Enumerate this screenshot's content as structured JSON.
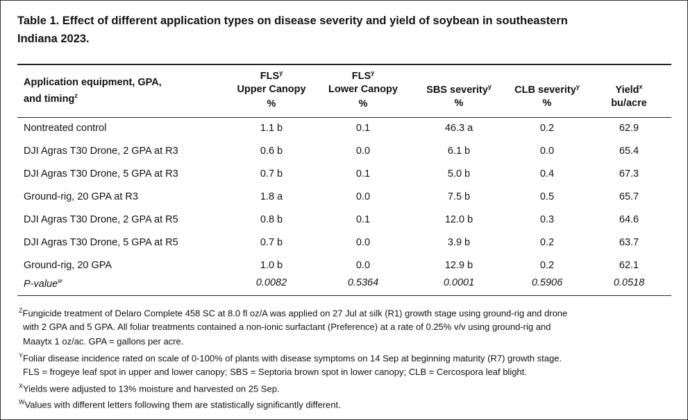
{
  "title": {
    "lines": [
      "Table 1. Effect of different application types on disease severity and yield of soybean in southeastern",
      "Indiana 2023."
    ]
  },
  "table": {
    "header": [
      [
        {
          "text": "Application equipment, GPA,"
        },
        {
          "text": "and timing",
          "sup": "z"
        }
      ],
      [
        {
          "text": "FLS",
          "sup": "y"
        },
        {
          "text": "Upper Canopy"
        },
        {
          "text": "%"
        }
      ],
      [
        {
          "text": "FLS",
          "sup": "y"
        },
        {
          "text": "Lower Canopy"
        },
        {
          "text": "%"
        }
      ],
      [
        {
          "text": "SBS severity",
          "sup": "y"
        },
        {
          "text": "%"
        }
      ],
      [
        {
          "text": "CLB severity",
          "sup": "y"
        },
        {
          "text": "%"
        }
      ],
      [
        {
          "text": "Yield",
          "sup": "x"
        },
        {
          "text": "bu/acre"
        }
      ]
    ],
    "rows": [
      [
        "Nontreated control",
        "1.1 b",
        "0.1",
        "46.3 a",
        "0.2",
        "62.9"
      ],
      [
        "DJI Agras T30 Drone, 2 GPA at R3",
        "0.6 b",
        "0.0",
        "6.1 b",
        "0.0",
        "65.4"
      ],
      [
        "DJI Agras T30 Drone, 5 GPA at R3",
        "0.7 b",
        "0.1",
        "5.0 b",
        "0.4",
        "67.3"
      ],
      [
        "Ground-rig, 20 GPA at R3",
        "1.8 a",
        "0.0",
        "7.5 b",
        "0.5",
        "65.7"
      ],
      [
        "DJI Agras T30 Drone, 2 GPA at R5",
        "0.8 b",
        "0.1",
        "12.0 b",
        "0.3",
        "64.6"
      ],
      [
        "DJI Agras T30 Drone, 5 GPA at R5",
        "0.7 b",
        "0.0",
        "3.9 b",
        "0.2",
        "63.7"
      ],
      [
        "Ground-rig, 20 GPA",
        "1.0 b",
        "0.0",
        "12.9 b",
        "0.2",
        "62.1"
      ]
    ],
    "p_value": {
      "label": "P-value",
      "sup": "w",
      "values": [
        "0.0082",
        "0.5364",
        "0.0001",
        "0.5906",
        "0.0518"
      ]
    }
  },
  "footnotes": [
    {
      "mark": "Z",
      "lines": [
        "Fungicide treatment of Delaro Complete 458 SC at 8.0 fl oz/A was applied on 27 Jul at silk (R1) growth stage using ground-rig and drone",
        "with 2 GPA and 5 GPA. All foliar treatments contained a non-ionic surfactant (Preference) at a rate of 0.25% v/v using ground-rig and",
        "Maaytx 1 oz/ac. GPA = gallons per acre."
      ]
    },
    {
      "mark": "Y",
      "lines": [
        "Foliar disease incidence rated on scale of 0-100% of plants with disease symptoms on 14 Sep at beginning maturity (R7) growth stage.",
        "FLS = frogeye leaf spot in upper and lower canopy; SBS = Septoria brown spot in lower canopy; CLB = Cercospora leaf blight."
      ]
    },
    {
      "mark": "X",
      "lines": [
        "Yields were adjusted to 13% moisture and harvested on 25 Sep."
      ]
    },
    {
      "mark": "W",
      "lines": [
        "Values with different letters following them are statistically significantly different."
      ]
    }
  ]
}
